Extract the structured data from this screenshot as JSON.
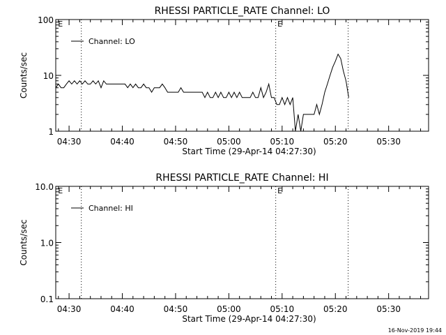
{
  "footer": {
    "timestamp": "16-Nov-2019 19:44"
  },
  "chart_data": [
    {
      "type": "line",
      "title": "RHESSI PARTICLE_RATE Channel: LO",
      "xlabel": "Start Time (29-Apr-14 04:27:30)",
      "ylabel": "Counts/sec",
      "yscale": "log",
      "ylim": [
        1,
        100
      ],
      "yticks": [
        1,
        10,
        100
      ],
      "ytick_labels": [
        "1",
        "10",
        "100"
      ],
      "xlim_minutes": [
        0,
        70
      ],
      "xticks": [
        "04:30",
        "04:40",
        "04:50",
        "05:00",
        "05:10",
        "05:20",
        "05:30"
      ],
      "grid": false,
      "legend": "top-left",
      "legend_label": "Channel: LO",
      "vlines_minutes": [
        4.8,
        41.3,
        54.9
      ],
      "markers": [
        {
          "text": "E",
          "minute": 0.3
        },
        {
          "text": "E",
          "minute": 41.5
        }
      ],
      "series": [
        {
          "name": "Channel: LO",
          "x": [
            0.0,
            0.5,
            1.0,
            1.5,
            2.0,
            2.5,
            3.0,
            3.5,
            4.0,
            4.5,
            5.0,
            5.5,
            6.0,
            6.5,
            7.0,
            7.5,
            8.0,
            8.5,
            9.0,
            9.5,
            10.0,
            10.5,
            11.0,
            11.5,
            12.0,
            12.5,
            13.0,
            13.5,
            14.0,
            14.5,
            15.0,
            15.5,
            16.0,
            16.5,
            17.0,
            17.5,
            18.0,
            18.5,
            19.0,
            19.5,
            20.0,
            20.5,
            21.0,
            21.5,
            22.0,
            22.5,
            23.0,
            23.5,
            24.0,
            24.5,
            25.0,
            25.5,
            26.0,
            26.5,
            27.0,
            27.5,
            28.0,
            28.5,
            29.0,
            29.5,
            30.0,
            30.5,
            31.0,
            31.5,
            32.0,
            32.5,
            33.0,
            33.5,
            34.0,
            34.5,
            35.0,
            35.5,
            36.0,
            36.5,
            37.0,
            37.5,
            38.0,
            38.5,
            39.0,
            39.5,
            40.0,
            40.5,
            41.0,
            41.5,
            42.0,
            42.5,
            43.0,
            43.5,
            44.0,
            44.5,
            45.0,
            45.5,
            46.0,
            46.5,
            47.0,
            47.5,
            48.0,
            48.5,
            49.0,
            49.5,
            50.0,
            50.5,
            51.0,
            51.5,
            52.0,
            52.5,
            53.0,
            53.5,
            54.0,
            54.5,
            55.0
          ],
          "y": [
            6,
            7,
            6,
            6,
            7,
            8,
            7,
            8,
            7,
            8,
            7,
            8,
            7,
            7,
            8,
            7,
            8,
            6,
            8,
            7,
            7,
            7,
            7,
            7,
            7,
            7,
            7,
            6,
            7,
            6,
            7,
            6,
            6,
            7,
            6,
            6,
            5,
            6,
            6,
            6,
            7,
            6,
            5,
            5,
            5,
            5,
            5,
            6,
            5,
            5,
            5,
            5,
            5,
            5,
            5,
            5,
            4,
            5,
            4,
            4,
            5,
            4,
            5,
            4,
            4,
            5,
            4,
            5,
            4,
            5,
            4,
            4,
            4,
            4,
            5,
            4,
            4,
            6,
            4,
            5,
            7,
            4,
            4,
            3,
            3,
            4,
            3,
            4,
            3,
            4,
            1,
            2,
            1,
            2,
            2,
            2,
            2,
            2,
            3,
            2,
            3,
            5,
            7,
            10,
            14,
            18,
            24,
            20,
            12,
            8,
            4
          ]
        }
      ]
    },
    {
      "type": "line",
      "title": "RHESSI PARTICLE_RATE Channel: HI",
      "xlabel": "Start Time (29-Apr-14 04:27:30)",
      "ylabel": "Counts/sec",
      "yscale": "log",
      "ylim": [
        0.1,
        10
      ],
      "yticks": [
        0.1,
        1,
        10
      ],
      "ytick_labels": [
        "0.1",
        "1.0",
        "10.0"
      ],
      "xlim_minutes": [
        0,
        70
      ],
      "xticks": [
        "04:30",
        "04:40",
        "04:50",
        "05:00",
        "05:10",
        "05:20",
        "05:30"
      ],
      "grid": false,
      "legend": "top-left",
      "legend_label": "Channel: HI",
      "vlines_minutes": [
        4.8,
        41.3,
        54.9
      ],
      "markers": [
        {
          "text": "E",
          "minute": 0.3
        },
        {
          "text": "E",
          "minute": 41.5
        }
      ],
      "series": [
        {
          "name": "Channel: HI",
          "x": [],
          "y": []
        }
      ]
    }
  ]
}
